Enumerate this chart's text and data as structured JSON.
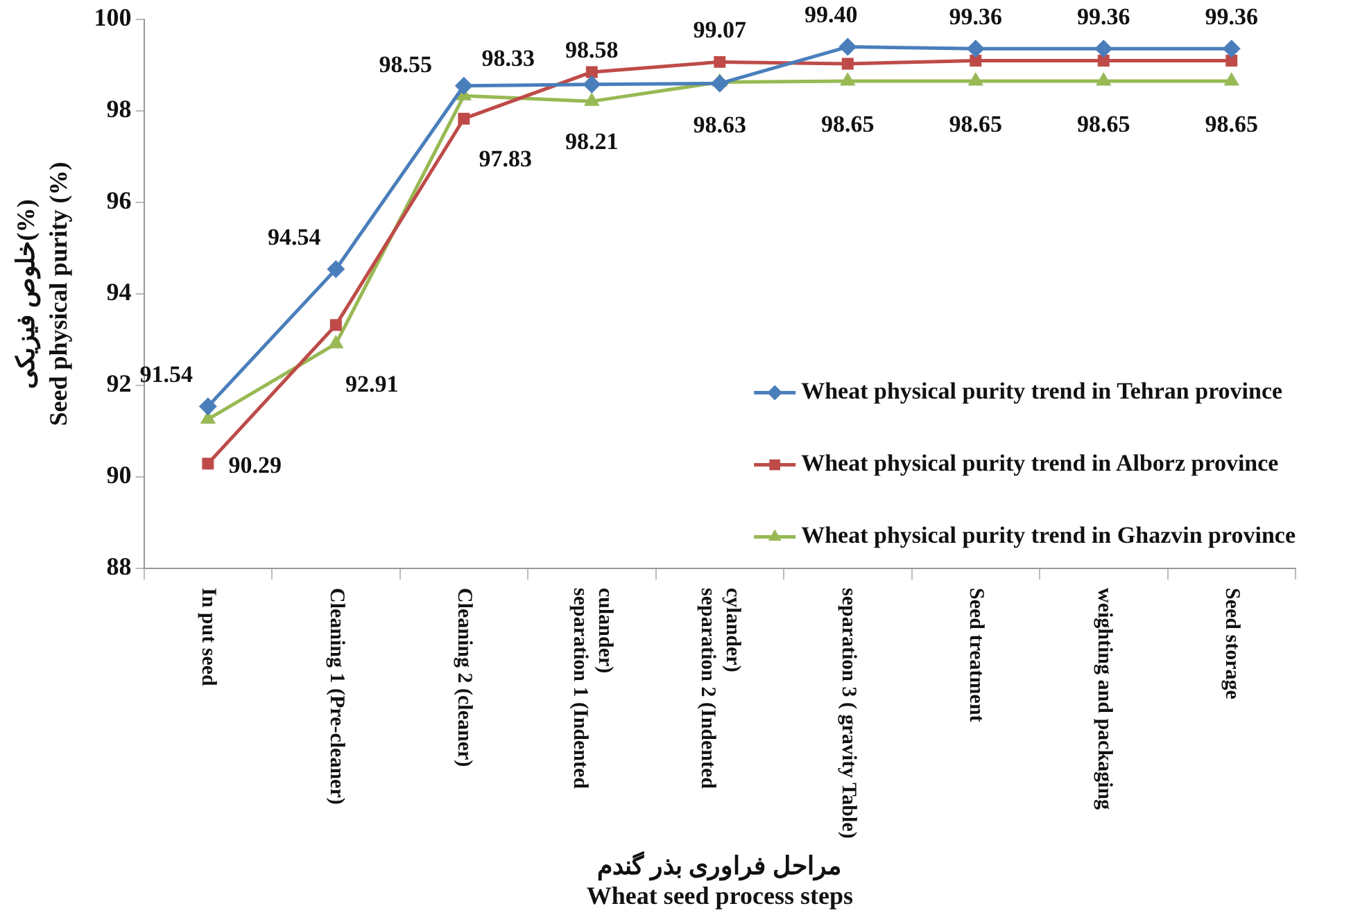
{
  "chart_data": {
    "type": "line",
    "xlabel": "مراحل فراوری بذر گندم\nWheat seed process steps",
    "ylabel": "خلوص فیزیکی(%)\nSeed physical purity (%)",
    "categories": [
      "In put seed",
      "Cleaning 1 (Pre-cleaner)",
      "Cleaning 2 (cleaner)",
      "separation 1 (Indented culander)",
      "separation 2 (Indented cylander)",
      "separation 3 ( gravity Table)",
      "Seed treatment",
      "weighting and packaging",
      "Seed storage"
    ],
    "series": [
      {
        "name": "Wheat physical purity trend in Tehran province",
        "color": "#4a7ebb",
        "marker": "diamond",
        "values": [
          91.54,
          94.54,
          98.55,
          98.58,
          98.6,
          99.4,
          99.36,
          99.36,
          99.36
        ],
        "value_labels": [
          "91.54",
          "94.54",
          "98.55",
          "98.58",
          null,
          "99.40",
          "99.36",
          "99.36",
          "99.36"
        ]
      },
      {
        "name": "Wheat physical purity trend in Alborz province",
        "color": "#be4b48",
        "marker": "square",
        "values": [
          90.29,
          93.32,
          97.83,
          98.85,
          99.07,
          99.03,
          99.1,
          99.1,
          99.1
        ],
        "value_labels": [
          "90.29",
          null,
          "97.83",
          null,
          "99.07",
          null,
          null,
          null,
          null
        ]
      },
      {
        "name": "Wheat physical purity trend in Ghazvin province",
        "color": "#98b954",
        "marker": "triangle",
        "values": [
          91.26,
          92.91,
          98.33,
          98.21,
          98.63,
          98.65,
          98.65,
          98.65,
          98.65
        ],
        "value_labels": [
          null,
          "92.91",
          "98.33",
          "98.21",
          "98.63",
          "98.65",
          "98.65",
          "98.65",
          "98.65"
        ]
      }
    ],
    "ylim": [
      88,
      100
    ],
    "yticks": [
      88,
      90,
      92,
      94,
      96,
      98,
      100
    ],
    "grid": false,
    "legend": "right",
    "line_style": "solid"
  }
}
